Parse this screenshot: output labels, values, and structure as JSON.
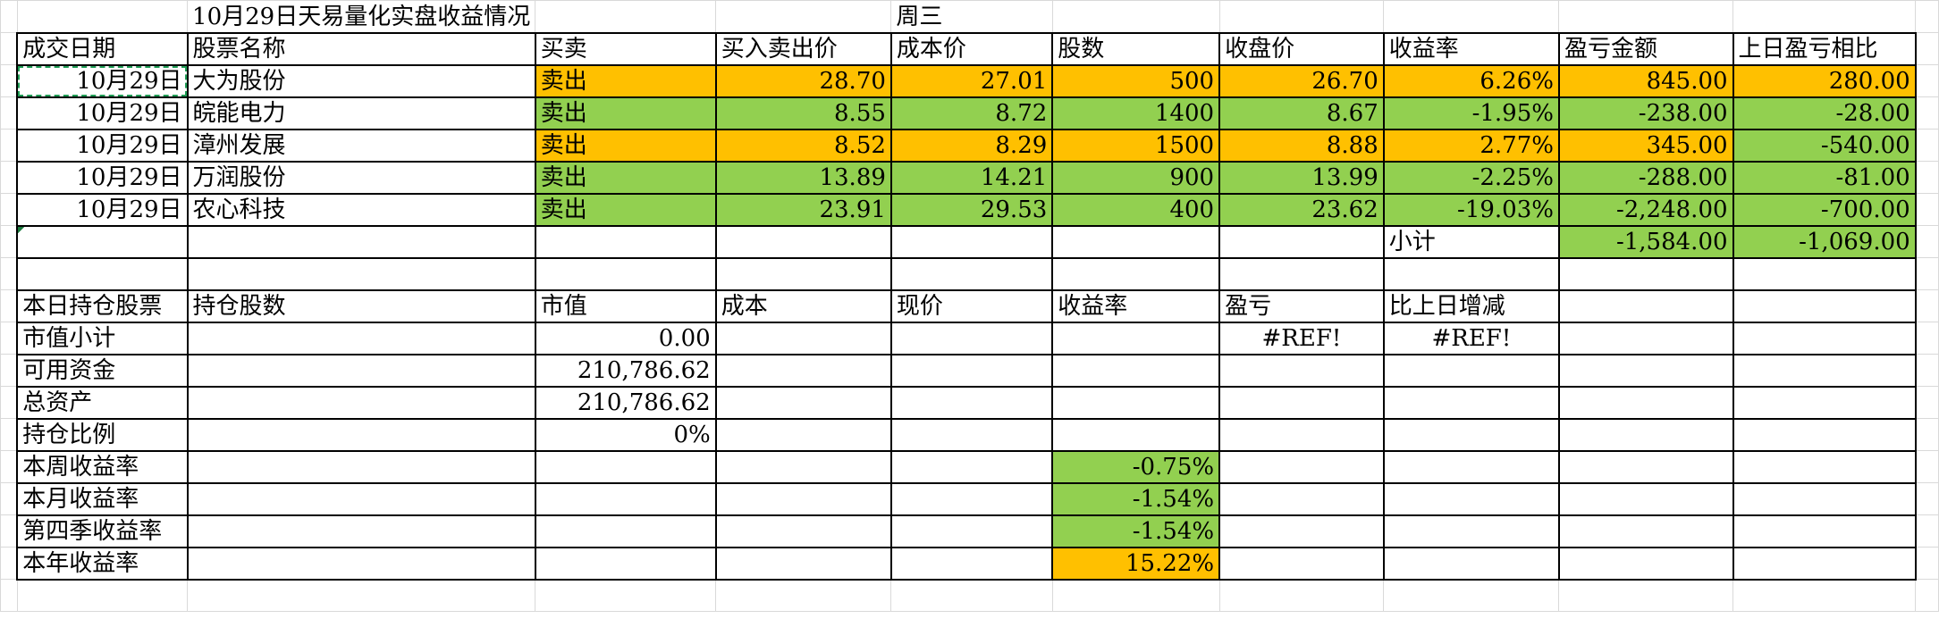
{
  "title_row": {
    "title": "10月29日天易量化实盘收益情况",
    "weekday": "周三"
  },
  "trade_headers": [
    "成交日期",
    "股票名称",
    "买卖",
    "买入卖出价",
    "成本价",
    "股数",
    "收盘价",
    "收益率",
    "盈亏金额",
    "上日盈亏相比"
  ],
  "trades": [
    {
      "date": "10月29日",
      "name": "大为股份",
      "side": "卖出",
      "price": "28.70",
      "cost": "27.01",
      "shares": "500",
      "close": "26.70",
      "rate": "6.26%",
      "pnl": "845.00",
      "vs_prev": "280.00"
    },
    {
      "date": "10月29日",
      "name": "皖能电力",
      "side": "卖出",
      "price": "8.55",
      "cost": "8.72",
      "shares": "1400",
      "close": "8.67",
      "rate": "-1.95%",
      "pnl": "-238.00",
      "vs_prev": "-28.00"
    },
    {
      "date": "10月29日",
      "name": "漳州发展",
      "side": "卖出",
      "price": "8.52",
      "cost": "8.29",
      "shares": "1500",
      "close": "8.88",
      "rate": "2.77%",
      "pnl": "345.00",
      "vs_prev": "-540.00"
    },
    {
      "date": "10月29日",
      "name": "万润股份",
      "side": "卖出",
      "price": "13.89",
      "cost": "14.21",
      "shares": "900",
      "close": "13.99",
      "rate": "-2.25%",
      "pnl": "-288.00",
      "vs_prev": "-81.00"
    },
    {
      "date": "10月29日",
      "name": "农心科技",
      "side": "卖出",
      "price": "23.91",
      "cost": "29.53",
      "shares": "400",
      "close": "23.62",
      "rate": "-19.03%",
      "pnl": "-2,248.00",
      "vs_prev": "-700.00"
    }
  ],
  "subtotal": {
    "label": "小计",
    "pnl": "-1,584.00",
    "vs_prev": "-1,069.00"
  },
  "holding_headers": [
    "本日持仓股票",
    "持仓股数",
    "市值",
    "成本",
    "现价",
    "收益率",
    "盈亏",
    "比上日增减"
  ],
  "summary": {
    "market_value_label": "市值小计",
    "market_value": "0.00",
    "pnl_ref": "#REF!",
    "change_ref": "#REF!",
    "available_funds_label": "可用资金",
    "available_funds": "210,786.62",
    "total_assets_label": "总资产",
    "total_assets": "210,786.62",
    "position_ratio_label": "持仓比例",
    "position_ratio": "0%",
    "week_return_label": "本周收益率",
    "week_return": "-0.75%",
    "month_return_label": "本月收益率",
    "month_return": "-1.54%",
    "quarter_return_label": "第四季收益率",
    "quarter_return": "-1.54%",
    "year_return_label": "本年收益率",
    "year_return": "15.22%"
  },
  "colors": {
    "profit": "#ffc000",
    "loss": "#92d050",
    "grid": "#d9d9d9",
    "border": "#000000"
  }
}
